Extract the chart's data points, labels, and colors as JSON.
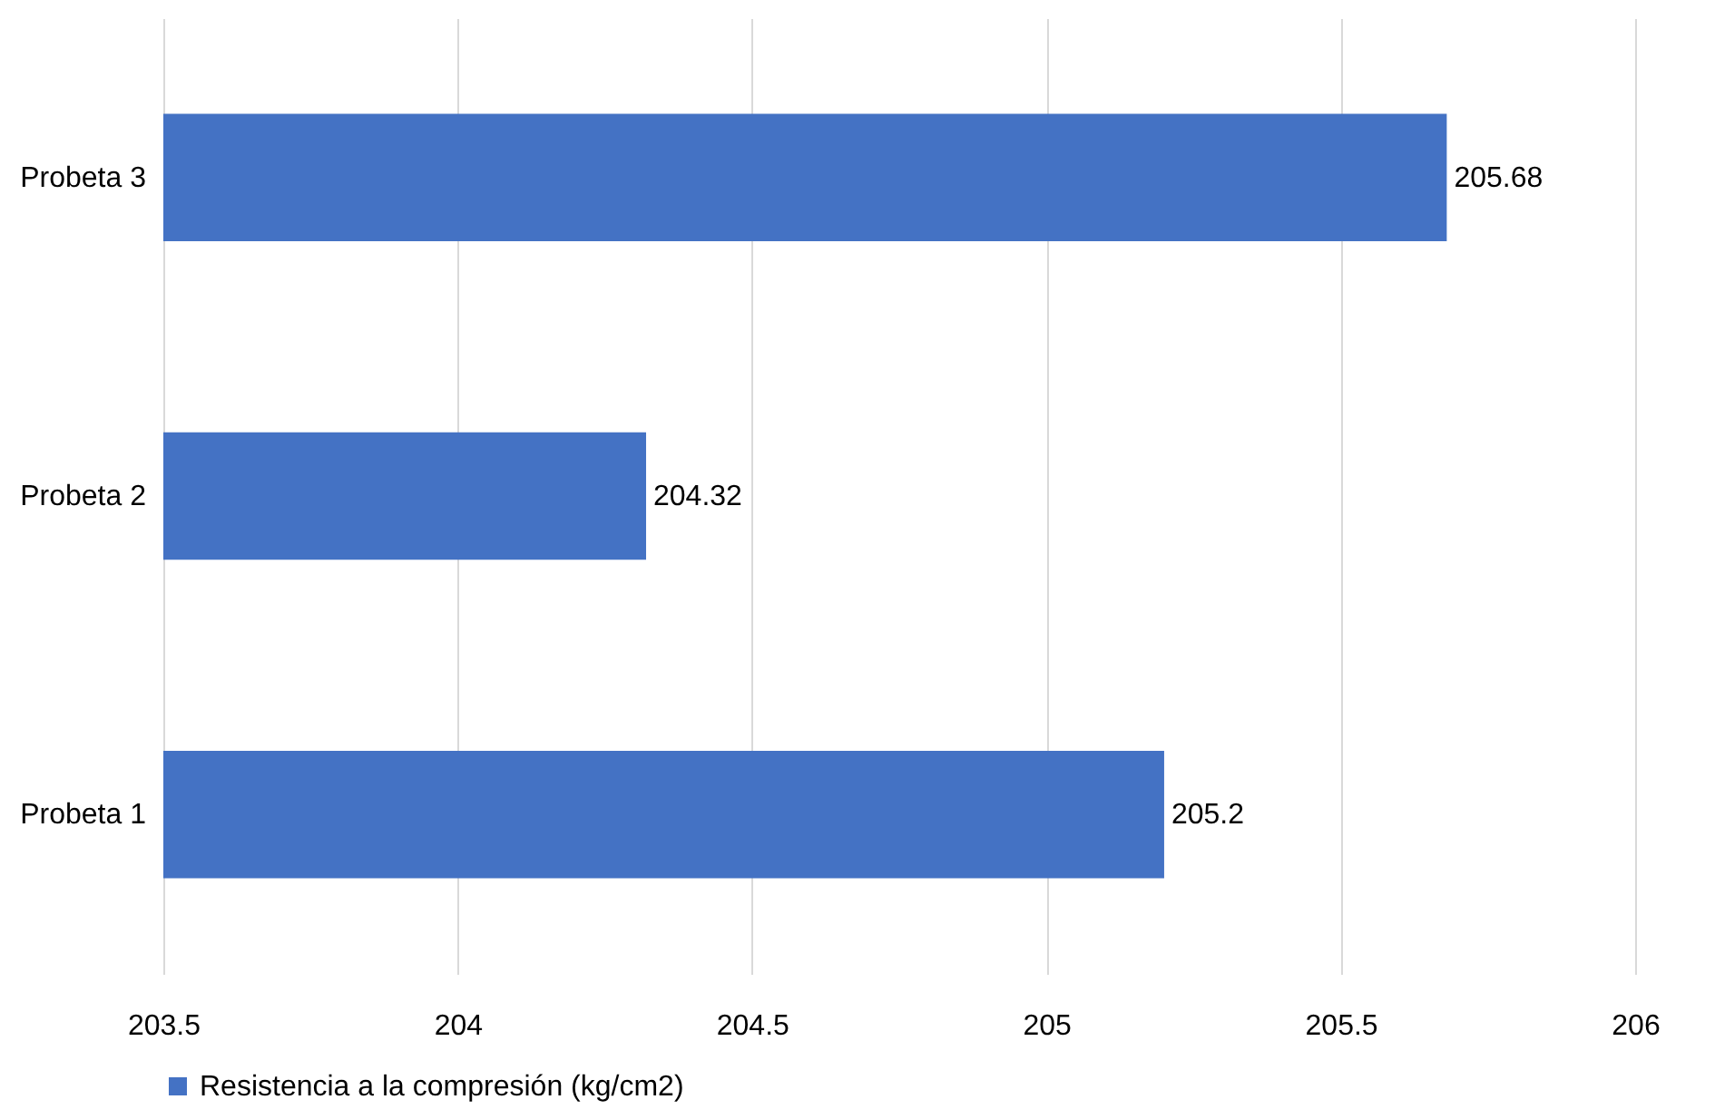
{
  "chart_data": {
    "type": "bar",
    "orientation": "horizontal",
    "categories": [
      "Probeta 3",
      "Probeta 2",
      "Probeta 1"
    ],
    "series": [
      {
        "name": "Resistencia a la compresión (kg/cm2)",
        "color": "#4472c4",
        "values": [
          205.68,
          204.32,
          205.2
        ]
      }
    ],
    "xlim": [
      203.5,
      206
    ],
    "xticks": [
      203.5,
      204,
      204.5,
      205,
      205.5,
      206
    ],
    "grid": "x",
    "legend": "bottom",
    "data_labels": true
  }
}
